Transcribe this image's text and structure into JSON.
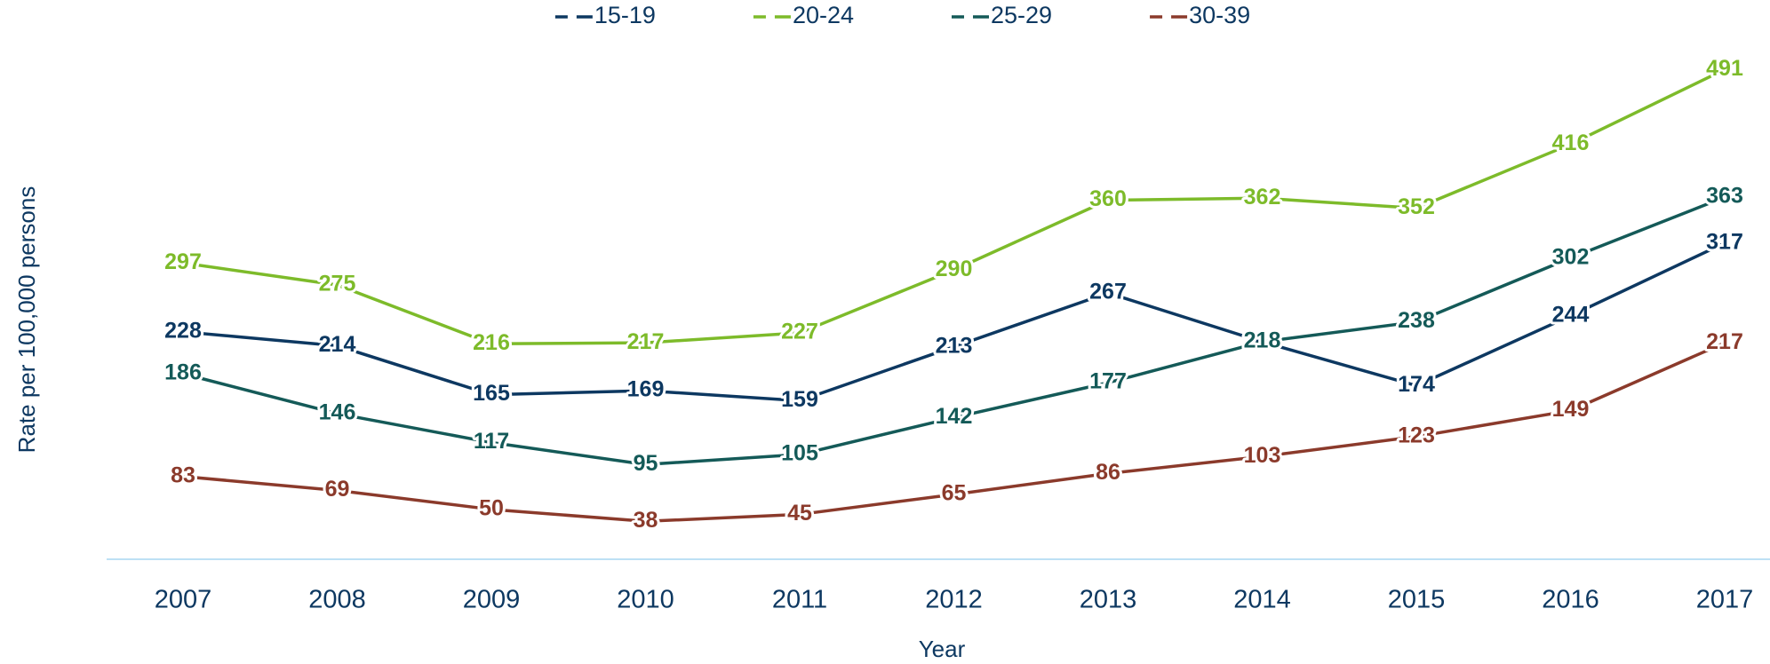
{
  "chart_data": {
    "type": "line",
    "categories": [
      "2007",
      "2008",
      "2009",
      "2010",
      "2011",
      "2012",
      "2013",
      "2014",
      "2015",
      "2016",
      "2017"
    ],
    "series": [
      {
        "name": "15-19",
        "color": "#0d3861",
        "values": [
          228,
          214,
          165,
          169,
          159,
          213,
          267,
          218,
          174,
          244,
          317
        ]
      },
      {
        "name": "20-24",
        "color": "#7dbb2a",
        "values": [
          297,
          275,
          216,
          217,
          227,
          290,
          360,
          362,
          352,
          416,
          491
        ]
      },
      {
        "name": "25-29",
        "color": "#145a58",
        "values": [
          186,
          146,
          117,
          95,
          105,
          142,
          177,
          218,
          238,
          302,
          363
        ]
      },
      {
        "name": "30-39",
        "color": "#8b3a2b",
        "values": [
          83,
          69,
          50,
          38,
          45,
          65,
          86,
          103,
          123,
          149,
          217
        ]
      }
    ],
    "xlabel": "Year",
    "ylabel": "Rate per 100,000 persons",
    "ylim": [
      0,
      550
    ],
    "legend": "top"
  }
}
